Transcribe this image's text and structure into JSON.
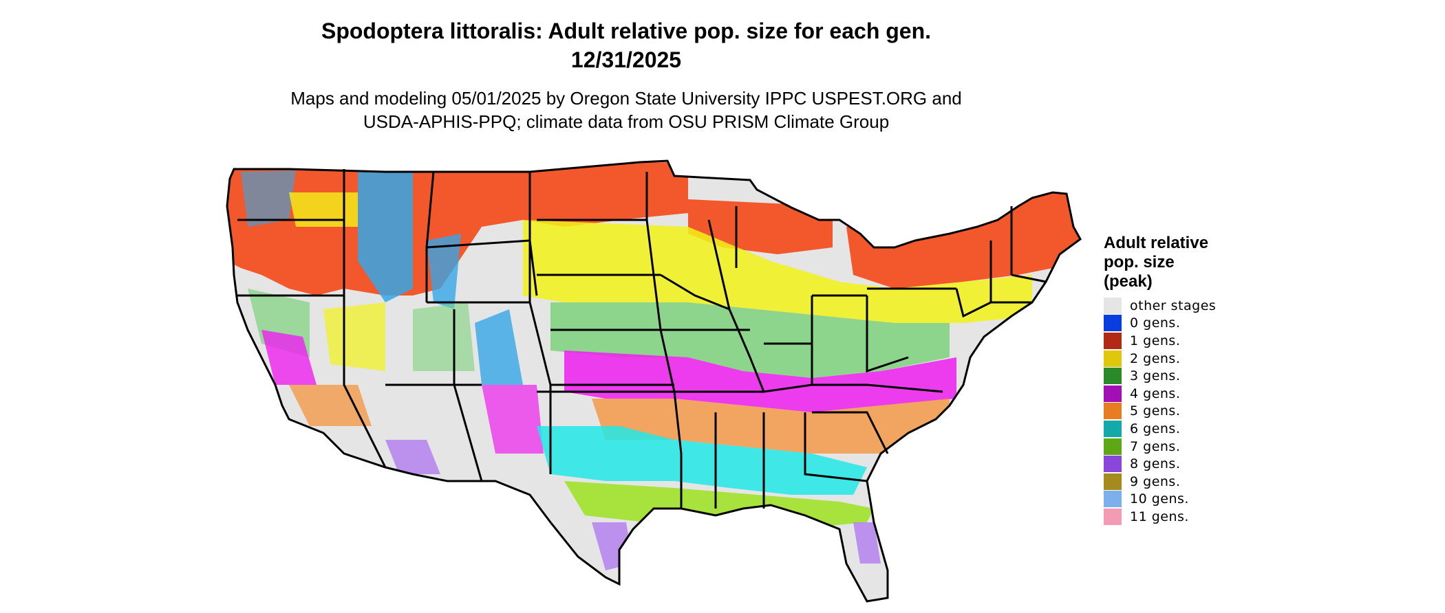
{
  "title": {
    "line1": "Spodoptera littoralis: Adult relative pop. size for each gen.",
    "line2": "12/31/2025"
  },
  "subtitle": {
    "line1": "Maps and modeling 05/01/2025 by Oregon State University IPPC USPEST.ORG and",
    "line2": "USDA-APHIS-PPQ; climate data from OSU PRISM Climate Group"
  },
  "legend": {
    "title_lines": [
      "Adult relative",
      "pop. size",
      "(peak)"
    ],
    "items": [
      {
        "label": "other stages",
        "color": "#e5e5e5"
      },
      {
        "label": "0 gens.",
        "color": "#0a3de0"
      },
      {
        "label": "1 gens.",
        "color": "#b22a14"
      },
      {
        "label": "2 gens.",
        "color": "#dfc70c"
      },
      {
        "label": "3 gens.",
        "color": "#2a8a2a"
      },
      {
        "label": "4 gens.",
        "color": "#a10fb5"
      },
      {
        "label": "5 gens.",
        "color": "#e77d1f"
      },
      {
        "label": "6 gens.",
        "color": "#13a9a9"
      },
      {
        "label": "7 gens.",
        "color": "#5ea716"
      },
      {
        "label": "8 gens.",
        "color": "#8a45db"
      },
      {
        "label": "9 gens.",
        "color": "#a58a1e"
      },
      {
        "label": "10 gens.",
        "color": "#7bb0ec"
      },
      {
        "label": "11 gens.",
        "color": "#f59ab4"
      }
    ]
  },
  "map_colors": {
    "background": "#e5e5e5",
    "one_gen_map": "#f4400a",
    "two_gen_map": "#f2f219",
    "three_gen_map": "#7ed27e",
    "four_gen_map": "#ef1ff0",
    "five_gen_map": "#f39a4a",
    "six_gen_map": "#22e8e8",
    "seven_gen_map": "#9de21f",
    "eight_gen_map": "#b482ee",
    "ten_gen_map": "#36a6e6",
    "border": "#000000"
  }
}
